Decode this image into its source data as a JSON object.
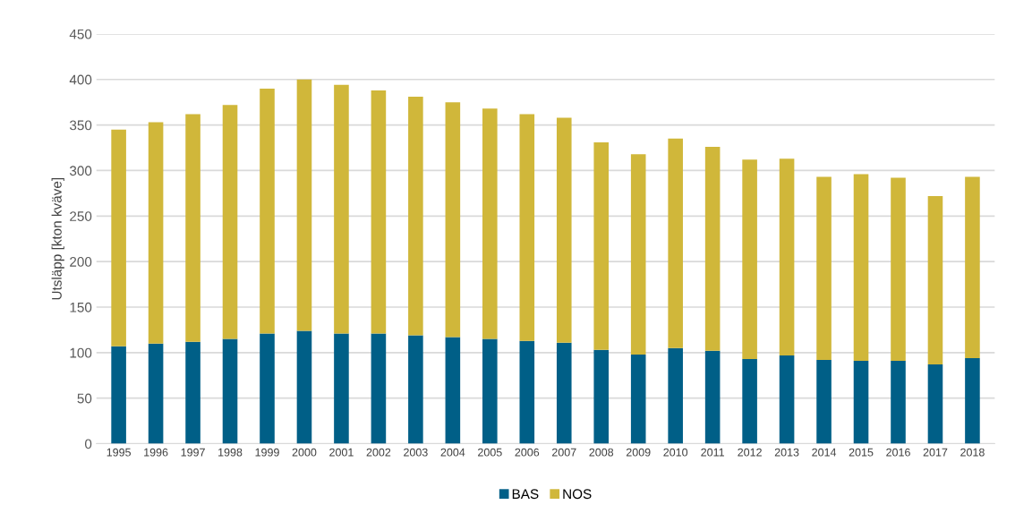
{
  "chart_data": {
    "type": "bar",
    "stacked": true,
    "ylabel": "Utsläpp [kton kväve]",
    "categories": [
      "1995",
      "1996",
      "1997",
      "1998",
      "1999",
      "2000",
      "2001",
      "2002",
      "2003",
      "2004",
      "2005",
      "2006",
      "2007",
      "2008",
      "2009",
      "2010",
      "2011",
      "2012",
      "2013",
      "2014",
      "2015",
      "2016",
      "2017",
      "2018"
    ],
    "series": [
      {
        "name": "BAS",
        "color": "#005f87",
        "values": [
          107,
          110,
          112,
          115,
          121,
          124,
          121,
          121,
          119,
          117,
          115,
          113,
          111,
          103,
          98,
          105,
          102,
          93,
          97,
          92,
          91,
          91,
          87,
          94
        ]
      },
      {
        "name": "NOS",
        "color": "#d0b73a",
        "values": [
          238,
          243,
          250,
          257,
          269,
          276,
          273,
          267,
          262,
          258,
          253,
          249,
          247,
          228,
          220,
          230,
          224,
          219,
          216,
          201,
          205,
          201,
          185,
          199
        ]
      }
    ],
    "ylim": [
      0,
      450
    ],
    "yticks": [
      0,
      50,
      100,
      150,
      200,
      250,
      300,
      350,
      400,
      450
    ],
    "grid": "y",
    "legend": "bottom"
  }
}
